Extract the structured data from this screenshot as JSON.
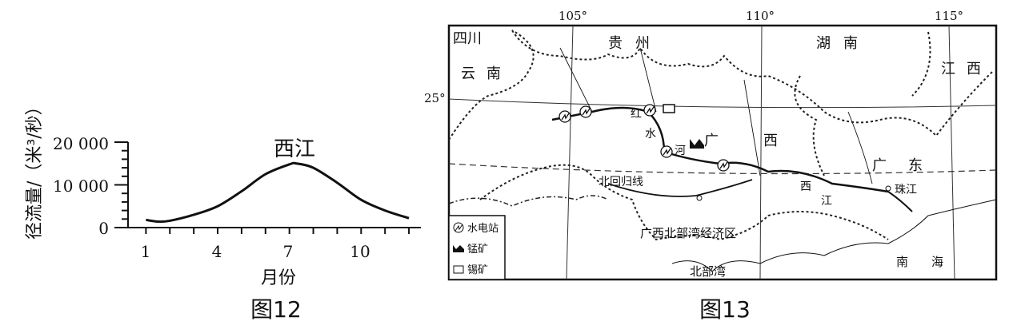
{
  "figure12": {
    "caption": "图12",
    "chart_data": {
      "type": "line",
      "title": "",
      "xlabel": "月份",
      "ylabel": "径流量/（米³/秒）",
      "series": [
        {
          "name": "西江",
          "x": [
            1,
            1.5,
            2,
            3,
            4,
            5,
            6,
            7,
            7.3,
            8,
            9,
            10,
            11,
            12
          ],
          "y": [
            1800,
            1400,
            1600,
            3000,
            5000,
            8500,
            12500,
            14800,
            15000,
            14000,
            10500,
            6500,
            4000,
            2200
          ]
        }
      ],
      "xticks": [
        "1",
        "4",
        "7",
        "10"
      ],
      "yticks": [
        "0",
        "10 000",
        "20 000"
      ],
      "xlim": [
        0.25,
        12.5
      ],
      "ylim": [
        0,
        20000
      ],
      "grid": false,
      "color": "#111111"
    }
  },
  "figure13": {
    "caption": "图13",
    "longitudes": [
      "105°",
      "110°",
      "115°"
    ],
    "latitude": "25°",
    "tropic_label": "北回归线",
    "provinces": [
      "四川",
      "贵州",
      "湖南",
      "云南",
      "江西",
      "广",
      "西",
      "广",
      "东"
    ],
    "rivers": [
      "红",
      "水",
      "河",
      "西",
      "江",
      "珠江"
    ],
    "zone_label": "广西北部湾经济区",
    "seas": [
      "北部湾",
      "南",
      "海"
    ],
    "legend": [
      {
        "icon": "hydropower-icon",
        "label": "水电站"
      },
      {
        "icon": "manganese-icon",
        "label": "锰矿"
      },
      {
        "icon": "tin-icon",
        "label": "锡矿"
      }
    ]
  }
}
